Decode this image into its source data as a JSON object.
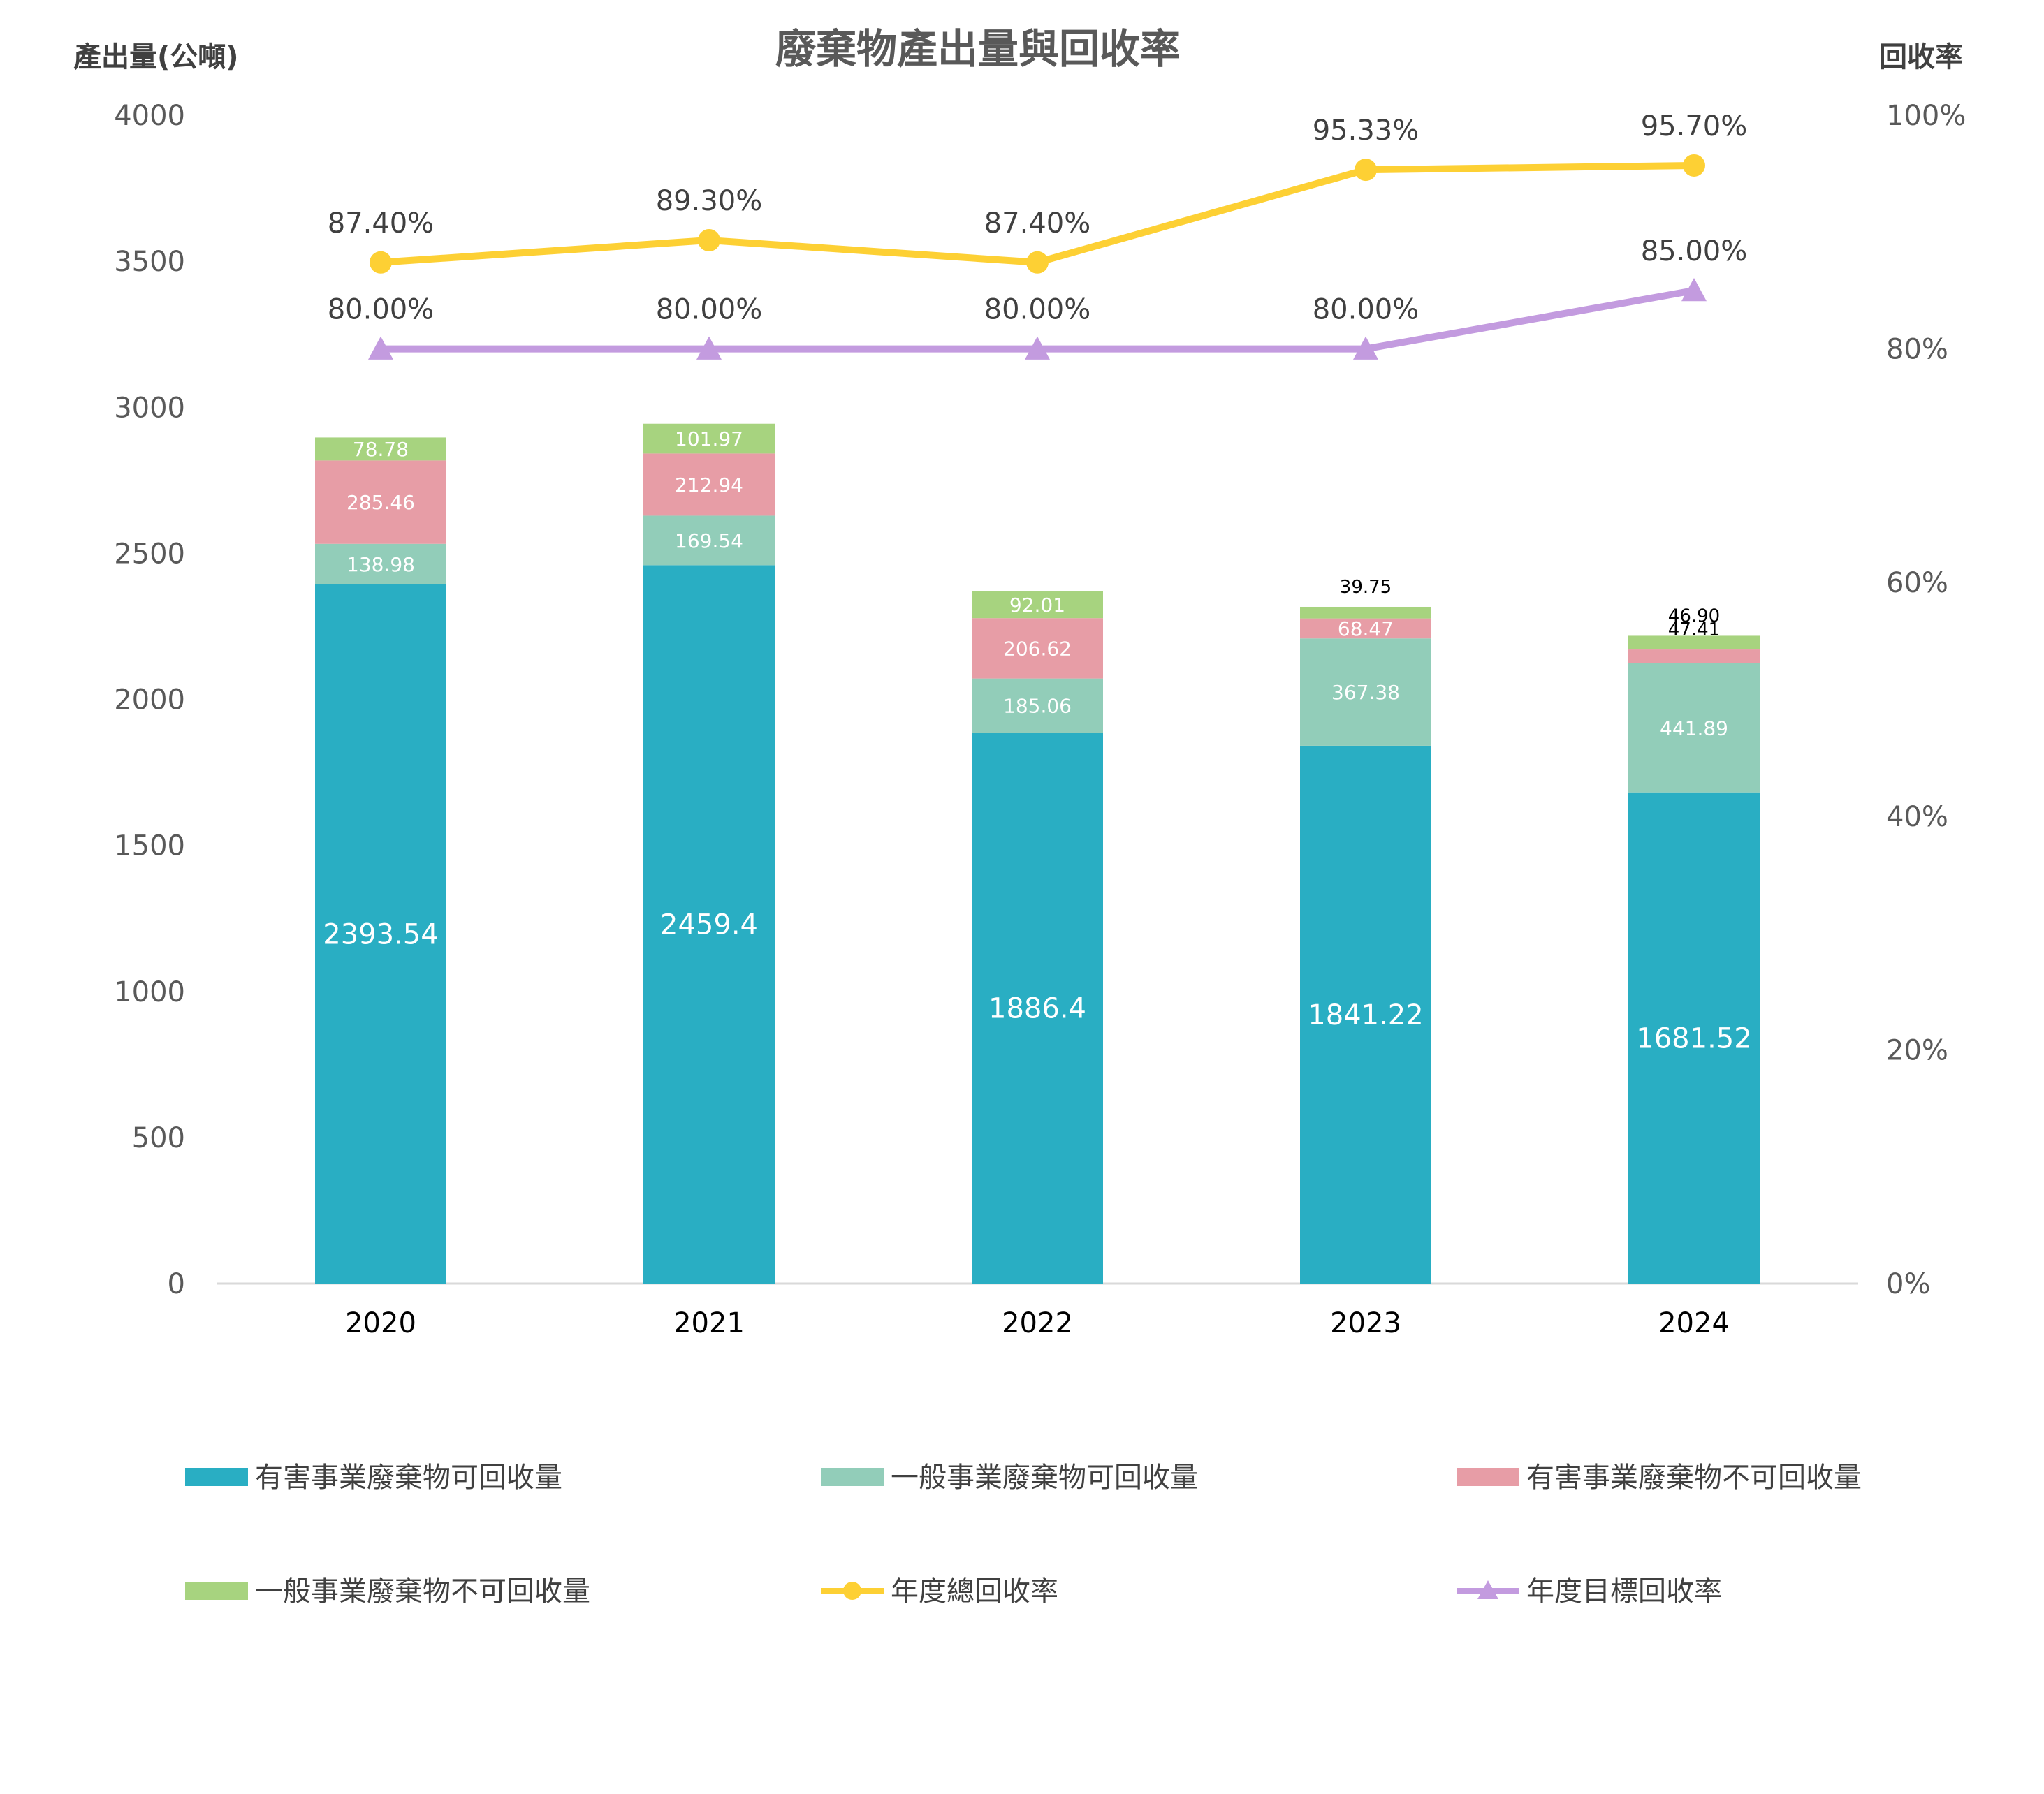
{
  "chart_data": {
    "type": "bar",
    "stacked": true,
    "title": "廢棄物產出量與回收率",
    "ylabel": "產出量(公噸)",
    "y2label": "回收率",
    "categories": [
      "2020",
      "2021",
      "2022",
      "2023",
      "2024"
    ],
    "ylim": [
      0,
      4000
    ],
    "yticks": [
      "0",
      "500",
      "1000",
      "1500",
      "2000",
      "2500",
      "3000",
      "3500",
      "4000"
    ],
    "y2lim": [
      0,
      100
    ],
    "y2ticks": [
      "0%",
      "20%",
      "40%",
      "60%",
      "80%",
      "100%"
    ],
    "grid": false,
    "legend_position": "bottom",
    "series": [
      {
        "name": "有害事業廢棄物可回收量",
        "color": "#29AEC3",
        "values": [
          2393.54,
          2459.4,
          1886.4,
          1841.22,
          1681.52
        ],
        "labels": [
          "2393.54",
          "2459.4",
          "1886.4",
          "1841.22",
          "1681.52"
        ]
      },
      {
        "name": "一般事業廢棄物可回收量",
        "color": "#92CDB9",
        "values": [
          138.98,
          169.54,
          185.06,
          367.38,
          441.89
        ],
        "labels": [
          "138.98",
          "169.54",
          "185.06",
          "367.38",
          "441.89"
        ]
      },
      {
        "name": "有害事業廢棄物不可回收量",
        "color": "#E79DA6",
        "values": [
          285.46,
          212.94,
          206.62,
          68.47,
          47.41
        ],
        "labels": [
          "285.46",
          "212.94",
          "206.62",
          "68.47",
          "47.41"
        ]
      },
      {
        "name": "一般事業廢棄物不可回收量",
        "color": "#A7D37F",
        "values": [
          78.78,
          101.97,
          92.01,
          39.75,
          46.9
        ],
        "labels": [
          "78.78",
          "101.97",
          "92.01",
          "39.75",
          "46.90"
        ]
      }
    ],
    "lines": [
      {
        "name": "年度總回收率",
        "color": "#FDD034",
        "marker": "circle",
        "axis": "right",
        "values": [
          87.4,
          89.3,
          87.4,
          95.33,
          95.7
        ],
        "labels": [
          "87.40%",
          "89.30%",
          "87.40%",
          "95.33%",
          "95.70%"
        ]
      },
      {
        "name": "年度目標回收率",
        "color": "#C39BDF",
        "marker": "triangle",
        "axis": "right",
        "values": [
          80,
          80,
          80,
          80,
          85
        ],
        "labels": [
          "80.00%",
          "80.00%",
          "80.00%",
          "80.00%",
          "85.00%"
        ]
      }
    ]
  }
}
